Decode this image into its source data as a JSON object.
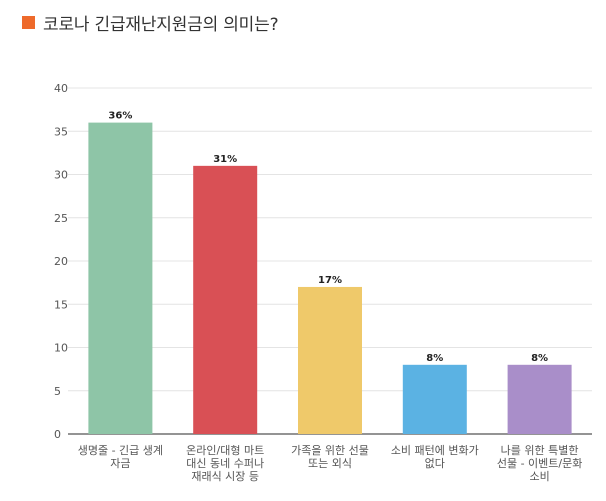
{
  "title": "코로나 긴급재난지원금의 의미는?",
  "colors": {
    "title_marker": "#ee6a2b",
    "grid": "#e4e4e4",
    "axis": "#555555"
  },
  "chart_data": {
    "type": "bar",
    "title": "코로나 긴급재난지원금의 의미는?",
    "xlabel": "",
    "ylabel": "",
    "ylim": [
      0,
      40
    ],
    "yticks": [
      0,
      5,
      10,
      15,
      20,
      25,
      30,
      35,
      40
    ],
    "grid": true,
    "categories": [
      [
        "생명줄 - 긴급 생계",
        "자금"
      ],
      [
        "온라인/대형 마트",
        "대신 동네 수퍼나",
        "재래식 시장 등"
      ],
      [
        "가족을 위한 선물",
        "또는 외식"
      ],
      [
        "소비 패턴에 변화가",
        "없다"
      ],
      [
        "나를 위한 특별한",
        "선물 - 이벤트/문화",
        "소비"
      ]
    ],
    "values": [
      36,
      31,
      17,
      8,
      8
    ],
    "data_labels": [
      "36%",
      "31%",
      "17%",
      "8%",
      "8%"
    ],
    "bar_colors": [
      "#8ec5a7",
      "#d95055",
      "#efc96a",
      "#5bb2e3",
      "#a98ec9"
    ]
  }
}
